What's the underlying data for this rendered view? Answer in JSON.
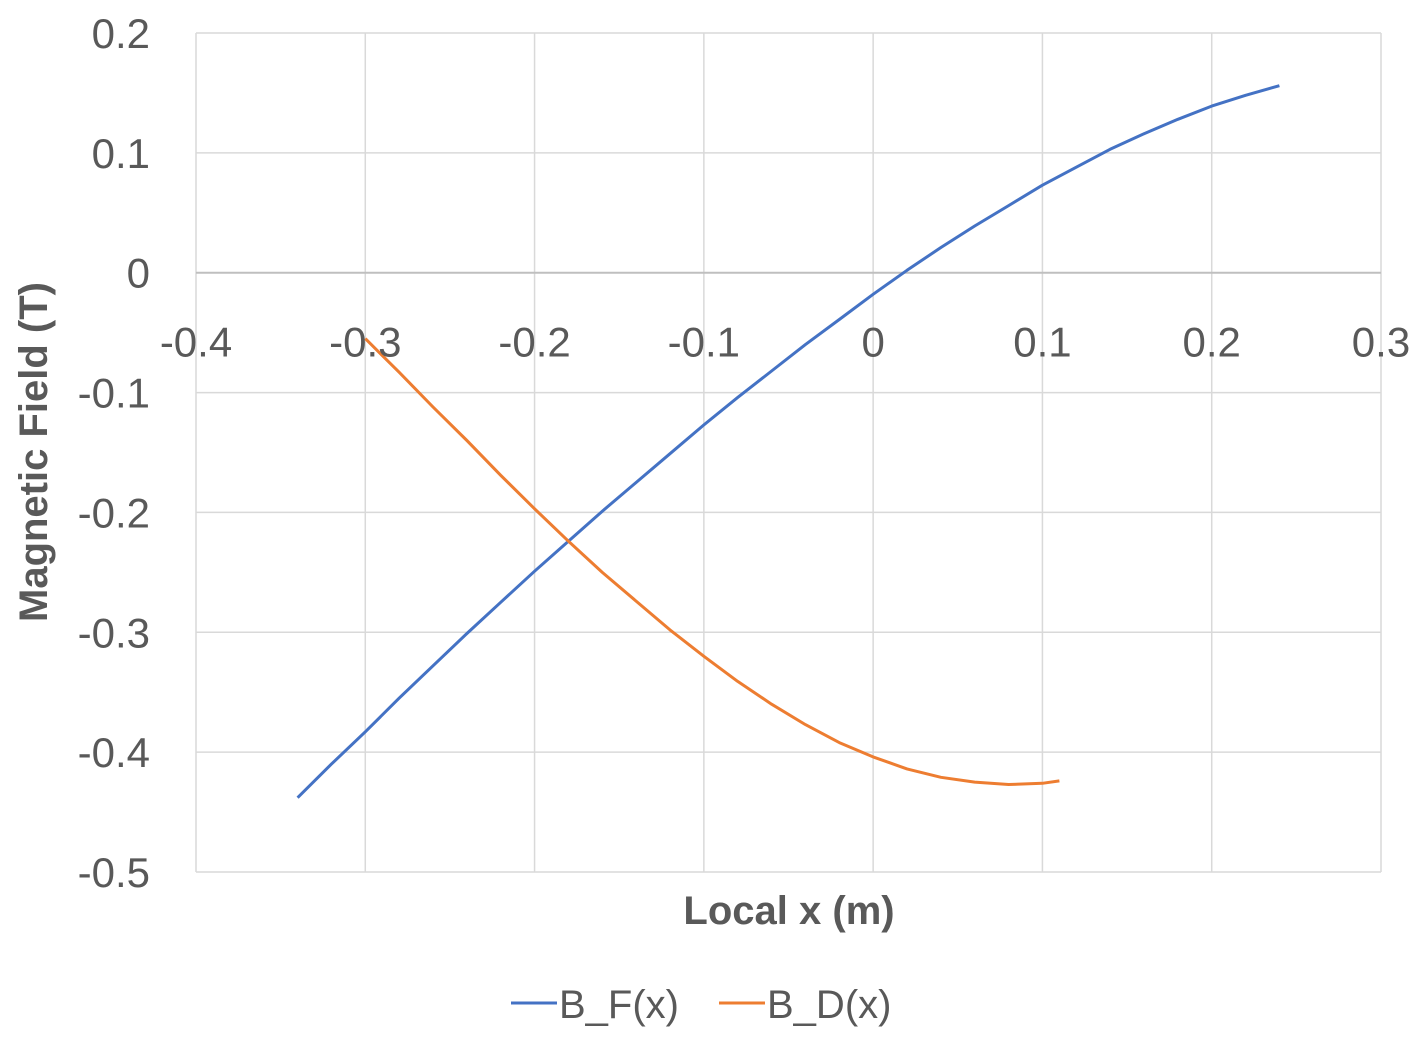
{
  "chart_data": {
    "type": "scatter",
    "title": "",
    "xlabel": "Local x (m)",
    "ylabel": "Magnetic Field (T)",
    "xlim": [
      -0.4,
      0.3
    ],
    "ylim": [
      -0.5,
      0.2
    ],
    "x_ticks": [
      -0.4,
      -0.3,
      -0.2,
      -0.1,
      0,
      0.1,
      0.2,
      0.3
    ],
    "y_ticks": [
      0.2,
      0.1,
      0,
      -0.1,
      -0.2,
      -0.3,
      -0.4,
      -0.5
    ],
    "x_tick_labels": [
      "-0.4",
      "-0.3",
      "-0.2",
      "-0.1",
      "0",
      "0.1",
      "0.2",
      "0.3"
    ],
    "y_tick_labels": [
      "0.2",
      "0.1",
      "0",
      "-0.1",
      "-0.2",
      "-0.3",
      "-0.4",
      "-0.5"
    ],
    "grid": true,
    "legend_position": "bottom",
    "series": [
      {
        "name": "B_F(x)",
        "color": "#4472C4",
        "points": [
          [
            -0.34,
            -0.438
          ],
          [
            -0.32,
            -0.41
          ],
          [
            -0.3,
            -0.383
          ],
          [
            -0.28,
            -0.355
          ],
          [
            -0.26,
            -0.328
          ],
          [
            -0.24,
            -0.301
          ],
          [
            -0.22,
            -0.275
          ],
          [
            -0.2,
            -0.249
          ],
          [
            -0.18,
            -0.224
          ],
          [
            -0.16,
            -0.199
          ],
          [
            -0.14,
            -0.175
          ],
          [
            -0.12,
            -0.151
          ],
          [
            -0.1,
            -0.127
          ],
          [
            -0.08,
            -0.104
          ],
          [
            -0.06,
            -0.082
          ],
          [
            -0.04,
            -0.06
          ],
          [
            -0.02,
            -0.039
          ],
          [
            0.0,
            -0.018
          ],
          [
            0.02,
            0.002
          ],
          [
            0.04,
            0.021
          ],
          [
            0.06,
            0.039
          ],
          [
            0.08,
            0.056
          ],
          [
            0.1,
            0.073
          ],
          [
            0.12,
            0.088
          ],
          [
            0.14,
            0.103
          ],
          [
            0.16,
            0.116
          ],
          [
            0.18,
            0.128
          ],
          [
            0.2,
            0.139
          ],
          [
            0.22,
            0.148
          ],
          [
            0.24,
            0.156
          ]
        ]
      },
      {
        "name": "B_D(x)",
        "color": "#ED7D31",
        "points": [
          [
            -0.3,
            -0.055
          ],
          [
            -0.28,
            -0.083
          ],
          [
            -0.26,
            -0.112
          ],
          [
            -0.24,
            -0.14
          ],
          [
            -0.22,
            -0.169
          ],
          [
            -0.2,
            -0.197
          ],
          [
            -0.18,
            -0.224
          ],
          [
            -0.16,
            -0.25
          ],
          [
            -0.14,
            -0.274
          ],
          [
            -0.12,
            -0.298
          ],
          [
            -0.1,
            -0.32
          ],
          [
            -0.08,
            -0.341
          ],
          [
            -0.06,
            -0.36
          ],
          [
            -0.04,
            -0.377
          ],
          [
            -0.02,
            -0.392
          ],
          [
            0.0,
            -0.404
          ],
          [
            0.02,
            -0.414
          ],
          [
            0.04,
            -0.421
          ],
          [
            0.06,
            -0.425
          ],
          [
            0.08,
            -0.427
          ],
          [
            0.1,
            -0.426
          ],
          [
            0.11,
            -0.424
          ]
        ]
      }
    ]
  }
}
